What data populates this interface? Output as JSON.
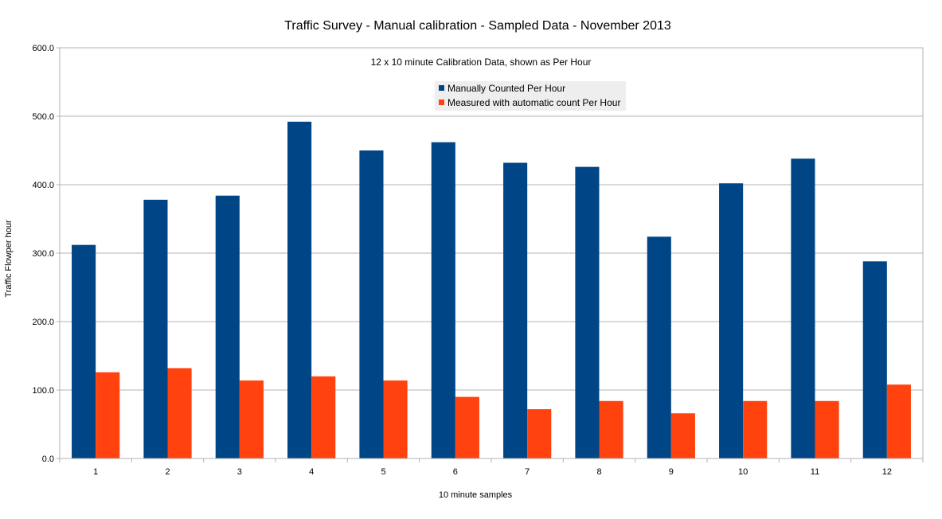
{
  "chart_data": {
    "type": "bar",
    "title": "Traffic Survey - Manual calibration  - Sampled Data - November 2013",
    "subtitle": "12 x 10 minute Calibration Data, shown as Per Hour",
    "xlabel": "10 minute samples",
    "ylabel": "Traffic Flowper hour",
    "ylim": [
      0,
      600
    ],
    "yticks": [
      "0.0",
      "100.0",
      "200.0",
      "300.0",
      "400.0",
      "500.0",
      "600.0"
    ],
    "grid": true,
    "legend_position": "top-center",
    "categories": [
      "1",
      "2",
      "3",
      "4",
      "5",
      "6",
      "7",
      "8",
      "9",
      "10",
      "11",
      "12"
    ],
    "series": [
      {
        "name": "Manually Counted Per Hour",
        "color": "#004586",
        "values": [
          312,
          378,
          384,
          492,
          450,
          462,
          432,
          426,
          324,
          402,
          438,
          288
        ]
      },
      {
        "name": "Measured with automatic count Per Hour",
        "color": "#ff420e",
        "values": [
          126,
          132,
          114,
          120,
          114,
          90,
          72,
          84,
          66,
          84,
          84,
          108
        ]
      }
    ]
  }
}
